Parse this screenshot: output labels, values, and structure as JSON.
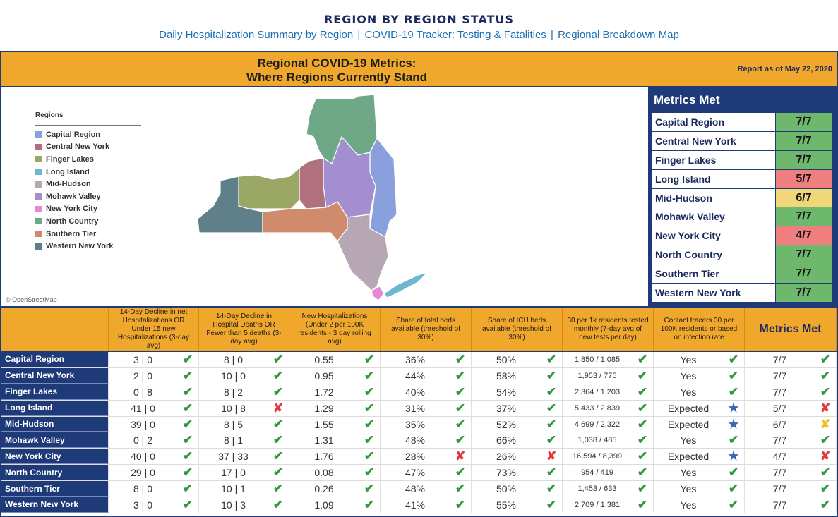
{
  "header": {
    "title": "REGION BY REGION STATUS",
    "links": [
      "Daily Hospitalization Summary by Region",
      "COVID-19 Tracker: Testing & Fatalities",
      "Regional Breakdown Map"
    ],
    "separator": "|"
  },
  "banner": {
    "title_line1": "Regional COVID-19 Metrics:",
    "title_line2": "Where Regions Currently Stand",
    "report_date": "Report as of May 22, 2020"
  },
  "map": {
    "legend_title": "Regions",
    "attribution": "© OpenStreetMap",
    "regions": [
      {
        "name": "Capital Region",
        "color": "#8aa0dc"
      },
      {
        "name": "Central New York",
        "color": "#b0707e"
      },
      {
        "name": "Finger Lakes",
        "color": "#9aa765"
      },
      {
        "name": "Long Island",
        "color": "#6fb6d2"
      },
      {
        "name": "Mid-Hudson",
        "color": "#b7a6b4"
      },
      {
        "name": "Mohawk Valley",
        "color": "#a38fcf"
      },
      {
        "name": "New York City",
        "color": "#e48ad8"
      },
      {
        "name": "North Country",
        "color": "#6fa886"
      },
      {
        "name": "Southern Tier",
        "color": "#cf8b6b"
      },
      {
        "name": "Western New York",
        "color": "#5f8088"
      }
    ]
  },
  "metrics_met_panel": {
    "title": "Metrics Met",
    "colors": {
      "green": "#6db86d",
      "red": "#ef7e7e",
      "yellow": "#f0d77a"
    },
    "rows": [
      {
        "region": "Capital Region",
        "score": "7/7",
        "status": "green"
      },
      {
        "region": "Central New York",
        "score": "7/7",
        "status": "green"
      },
      {
        "region": "Finger Lakes",
        "score": "7/7",
        "status": "green"
      },
      {
        "region": "Long Island",
        "score": "5/7",
        "status": "red"
      },
      {
        "region": "Mid-Hudson",
        "score": "6/7",
        "status": "yellow"
      },
      {
        "region": "Mohawk Valley",
        "score": "7/7",
        "status": "green"
      },
      {
        "region": "New York City",
        "score": "4/7",
        "status": "red"
      },
      {
        "region": "North Country",
        "score": "7/7",
        "status": "green"
      },
      {
        "region": "Southern Tier",
        "score": "7/7",
        "status": "green"
      },
      {
        "region": "Western New York",
        "score": "7/7",
        "status": "green"
      }
    ]
  },
  "table": {
    "columns": [
      "",
      "14-Day Decline in net Hospitalizations OR Under 15 new Hospitalizations (3-day avg)",
      "14-Day Decline in Hospital Deaths OR Fewer than 5 deaths (3-day avg)",
      "New Hospitalizations (Under 2 per 100K residents - 3 day rolling avg)",
      "Share of total beds available (threshold of 30%)",
      "Share of ICU beds available (threshold of 30%)",
      "30 per 1k residents tested monthly (7-day avg of new tests per day)",
      "Contact tracers 30 per 100K residents or based on infection rate",
      "Metrics Met"
    ],
    "marks": {
      "check": "✔",
      "cross": "✘",
      "star": "★"
    },
    "rows": [
      {
        "region": "Capital Region",
        "cells": [
          [
            "3 | 0",
            "check"
          ],
          [
            "8 | 0",
            "check"
          ],
          [
            "0.55",
            "check"
          ],
          [
            "36%",
            "check"
          ],
          [
            "50%",
            "check"
          ],
          [
            "1,850 / 1,085",
            "check"
          ],
          [
            "Yes",
            "check"
          ],
          [
            "7/7",
            "check"
          ]
        ]
      },
      {
        "region": "Central New York",
        "cells": [
          [
            "2 | 0",
            "check"
          ],
          [
            "10 | 0",
            "check"
          ],
          [
            "0.95",
            "check"
          ],
          [
            "44%",
            "check"
          ],
          [
            "58%",
            "check"
          ],
          [
            "1,953 / 775",
            "check"
          ],
          [
            "Yes",
            "check"
          ],
          [
            "7/7",
            "check"
          ]
        ]
      },
      {
        "region": "Finger Lakes",
        "cells": [
          [
            "0 | 8",
            "check"
          ],
          [
            "8 | 2",
            "check"
          ],
          [
            "1.72",
            "check"
          ],
          [
            "40%",
            "check"
          ],
          [
            "54%",
            "check"
          ],
          [
            "2,364 / 1,203",
            "check"
          ],
          [
            "Yes",
            "check"
          ],
          [
            "7/7",
            "check"
          ]
        ]
      },
      {
        "region": "Long Island",
        "cells": [
          [
            "41 | 0",
            "check"
          ],
          [
            "10 | 8",
            "cross"
          ],
          [
            "1.29",
            "check"
          ],
          [
            "31%",
            "check"
          ],
          [
            "37%",
            "check"
          ],
          [
            "5,433 / 2,839",
            "check"
          ],
          [
            "Expected",
            "star"
          ],
          [
            "5/7",
            "cross"
          ]
        ]
      },
      {
        "region": "Mid-Hudson",
        "cells": [
          [
            "39 | 0",
            "check"
          ],
          [
            "8 | 5",
            "check"
          ],
          [
            "1.55",
            "check"
          ],
          [
            "35%",
            "check"
          ],
          [
            "52%",
            "check"
          ],
          [
            "4,699 / 2,322",
            "check"
          ],
          [
            "Expected",
            "star"
          ],
          [
            "6/7",
            "warn"
          ]
        ]
      },
      {
        "region": "Mohawk Valley",
        "cells": [
          [
            "0 | 2",
            "check"
          ],
          [
            "8 | 1",
            "check"
          ],
          [
            "1.31",
            "check"
          ],
          [
            "48%",
            "check"
          ],
          [
            "66%",
            "check"
          ],
          [
            "1,038 / 485",
            "check"
          ],
          [
            "Yes",
            "check"
          ],
          [
            "7/7",
            "check"
          ]
        ]
      },
      {
        "region": "New York City",
        "cells": [
          [
            "40 | 0",
            "check"
          ],
          [
            "37 | 33",
            "check"
          ],
          [
            "1.76",
            "check"
          ],
          [
            "28%",
            "cross"
          ],
          [
            "26%",
            "cross"
          ],
          [
            "16,594 / 8,399",
            "check"
          ],
          [
            "Expected",
            "star"
          ],
          [
            "4/7",
            "cross"
          ]
        ]
      },
      {
        "region": "North Country",
        "cells": [
          [
            "29 | 0",
            "check"
          ],
          [
            "17 | 0",
            "check"
          ],
          [
            "0.08",
            "check"
          ],
          [
            "47%",
            "check"
          ],
          [
            "73%",
            "check"
          ],
          [
            "954 / 419",
            "check"
          ],
          [
            "Yes",
            "check"
          ],
          [
            "7/7",
            "check"
          ]
        ]
      },
      {
        "region": "Southern Tier",
        "cells": [
          [
            "8 | 0",
            "check"
          ],
          [
            "10 | 1",
            "check"
          ],
          [
            "0.26",
            "check"
          ],
          [
            "48%",
            "check"
          ],
          [
            "50%",
            "check"
          ],
          [
            "1,453 / 633",
            "check"
          ],
          [
            "Yes",
            "check"
          ],
          [
            "7/7",
            "check"
          ]
        ]
      },
      {
        "region": "Western New York",
        "cells": [
          [
            "3 | 0",
            "check"
          ],
          [
            "10 | 3",
            "check"
          ],
          [
            "1.09",
            "check"
          ],
          [
            "41%",
            "check"
          ],
          [
            "55%",
            "check"
          ],
          [
            "2,709 / 1,381",
            "check"
          ],
          [
            "Yes",
            "check"
          ],
          [
            "7/7",
            "check"
          ]
        ]
      }
    ]
  }
}
